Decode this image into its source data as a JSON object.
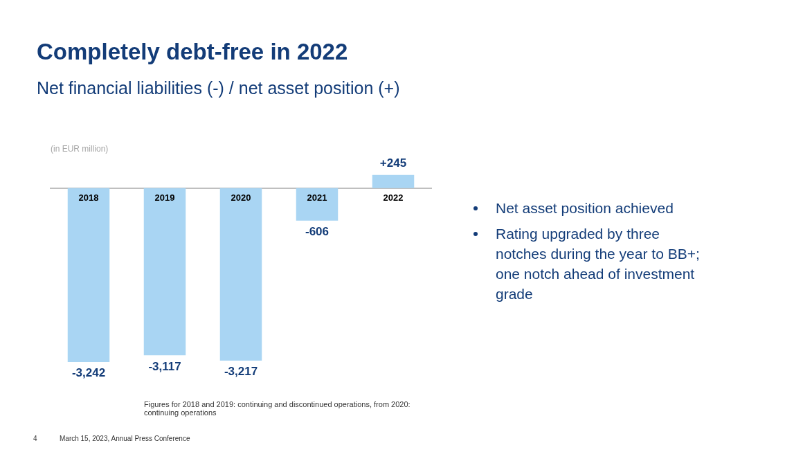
{
  "chart_data": {
    "type": "bar",
    "title": "Completely debt-free in 2022",
    "subtitle": "Net financial liabilities (-) / net asset position (+)",
    "ylabel": "(in EUR million)",
    "categories": [
      "2018",
      "2019",
      "2020",
      "2021",
      "2022"
    ],
    "values": [
      -3242,
      -3117,
      -3217,
      -606,
      245
    ],
    "value_labels": [
      "-3,242",
      "-3,117",
      "-3,217",
      "-606",
      "+245"
    ],
    "color": "#a9d5f3",
    "grid": false,
    "legend": false,
    "annotations": [
      "Net asset position achieved",
      "Rating upgraded by three notches during the year to BB+; one notch ahead of investment grade",
      "Figures for 2018 and 2019: continuing and discontinued operations, from 2020: continuing operations",
      "4",
      "March 15, 2023, Annual Press Conference"
    ]
  }
}
